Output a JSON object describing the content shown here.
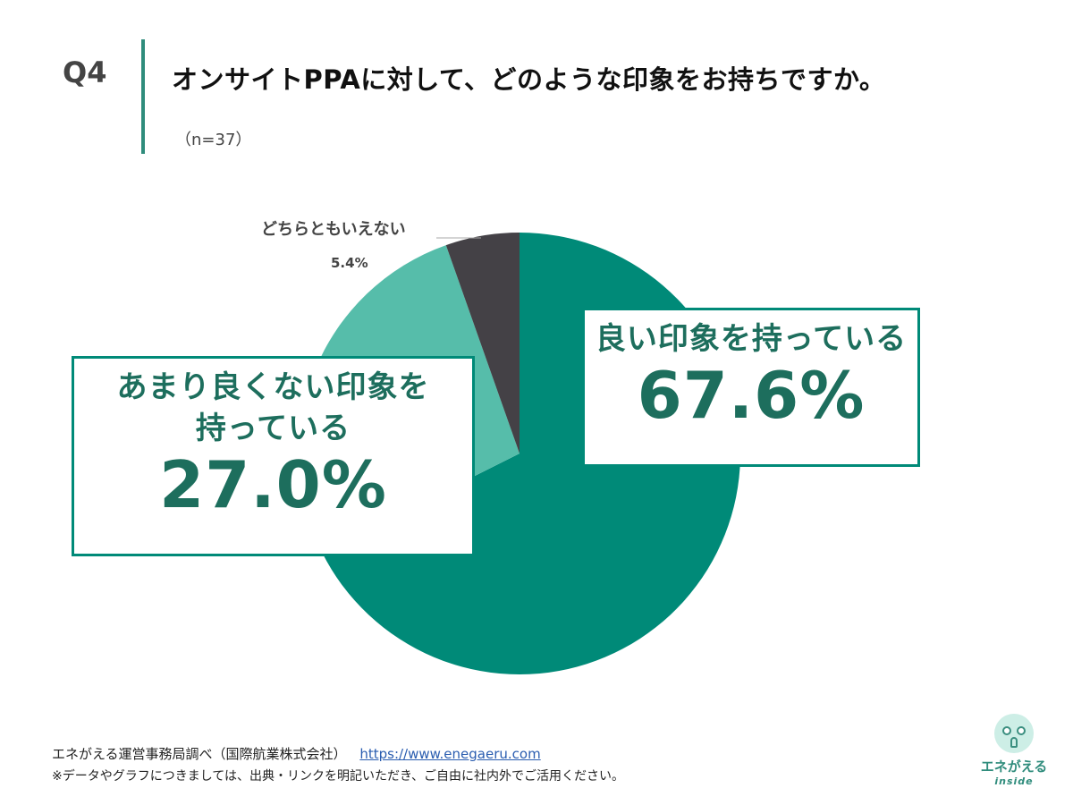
{
  "header": {
    "q_number": "Q4",
    "question": "オンサイトPPAに対して、どのような印象をお持ちですか。",
    "sample": "（n=37）"
  },
  "colors": {
    "primary": "#008a78",
    "light": "#56bdaa",
    "dark": "#444146",
    "text_green": "#1d6e5d",
    "rule": "#2f8c7c"
  },
  "chart_data": {
    "type": "pie",
    "start_angle": "12 o'clock",
    "direction": "clockwise",
    "slices": [
      {
        "label": "良い印象を持っている",
        "value": 67.6,
        "value_label": "67.6%"
      },
      {
        "label": "あまり良くない印象を持っている",
        "value": 27.0,
        "value_label": "27.0%"
      },
      {
        "label": "どちらともいえない",
        "value": 5.4,
        "value_label": "5.4%"
      }
    ]
  },
  "labels": {
    "good": {
      "line1": "良い印象を持っている",
      "value": "67.6%"
    },
    "bad": {
      "line1": "あまり良くない印象を",
      "line2": "持っている",
      "value": "27.0%"
    },
    "neutral": {
      "name": "どちらともいえない",
      "value": "5.4%"
    }
  },
  "footer": {
    "source": "エネがえる運営事務局調べ（国際航業株式会社）",
    "link": "https://www.enegaeru.com",
    "note": "※データやグラフにつきましては、出典・リンクを明記いただき、ご自由に社内外でご活用ください。"
  },
  "logo": {
    "text": "エネがえる",
    "sub": "inside"
  }
}
